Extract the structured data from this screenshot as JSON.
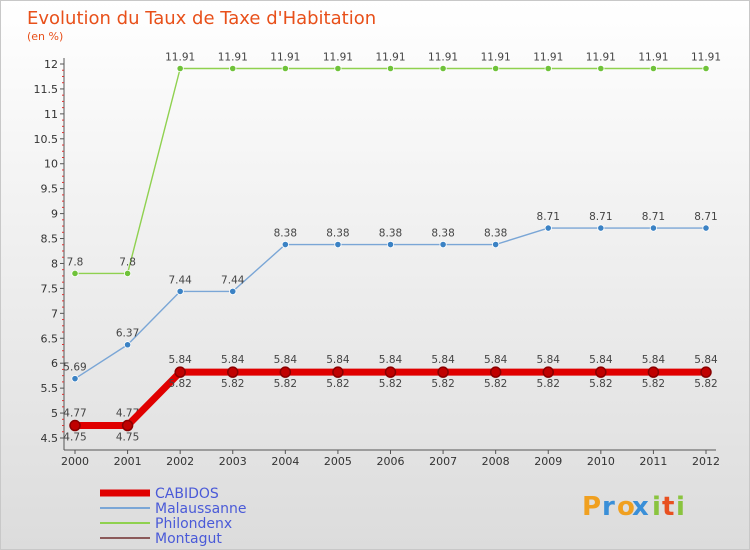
{
  "chart_data": {
    "type": "line",
    "title": "Evolution du Taux de Taxe d'Habitation",
    "ylabel": "(en %)",
    "xlabel": "",
    "ylim": [
      4.5,
      12
    ],
    "yticks": [
      "4.5",
      "5",
      "5.5",
      "6",
      "6.5",
      "7",
      "7.5",
      "8",
      "8.5",
      "9",
      "9.5",
      "10",
      "10.5",
      "11",
      "11.5",
      "12"
    ],
    "x": [
      "2000",
      "2001",
      "2002",
      "2003",
      "2004",
      "2005",
      "2006",
      "2007",
      "2008",
      "2009",
      "2010",
      "2011",
      "2012"
    ],
    "series": [
      {
        "name": "Philondenx",
        "color": "#8fd14f",
        "point_color": "#6fc23a",
        "values": [
          7.8,
          7.8,
          11.91,
          11.91,
          11.91,
          11.91,
          11.91,
          11.91,
          11.91,
          11.91,
          11.91,
          11.91,
          11.91
        ],
        "labels": [
          "7.8",
          "7.8",
          "11.91",
          "11.91",
          "11.91",
          "11.91",
          "11.91",
          "11.91",
          "11.91",
          "11.91",
          "11.91",
          "11.91",
          "11.91"
        ]
      },
      {
        "name": "Malaussanne",
        "color": "#7aa6d6",
        "point_color": "#3b82c4",
        "values": [
          5.69,
          6.37,
          7.44,
          7.44,
          8.38,
          8.38,
          8.38,
          8.38,
          8.38,
          8.71,
          8.71,
          8.71,
          8.71
        ],
        "labels": [
          "5.69",
          "6.37",
          "7.44",
          "7.44",
          "8.38",
          "8.38",
          "8.38",
          "8.38",
          "8.38",
          "8.71",
          "8.71",
          "8.71",
          "8.71"
        ]
      },
      {
        "name": "Montagut",
        "color": "#8b5a5a",
        "point_color": "#7a3a3a",
        "values": [
          4.77,
          4.77,
          5.84,
          5.84,
          5.84,
          5.84,
          5.84,
          5.84,
          5.84,
          5.84,
          5.84,
          5.84,
          5.84
        ],
        "labels": [
          "4.77",
          "4.77",
          "5.84",
          "5.84",
          "5.84",
          "5.84",
          "5.84",
          "5.84",
          "5.84",
          "5.84",
          "5.84",
          "5.84",
          "5.84"
        ]
      },
      {
        "name": "CABIDOS",
        "color": "#e00000",
        "point_color": "#c00000",
        "values": [
          4.75,
          4.75,
          5.82,
          5.82,
          5.82,
          5.82,
          5.82,
          5.82,
          5.82,
          5.82,
          5.82,
          5.82,
          5.82
        ],
        "labels": [
          "4.75",
          "4.75",
          "5.82",
          "5.82",
          "5.82",
          "5.82",
          "5.82",
          "5.82",
          "5.82",
          "5.82",
          "5.82",
          "5.82",
          "5.82"
        ]
      }
    ],
    "legend": [
      "CABIDOS",
      "Malaussanne",
      "Philondenx",
      "Montagut"
    ],
    "grid": false
  },
  "brand": {
    "letters": [
      "P",
      "r",
      "o",
      "x",
      "i",
      "t",
      "i"
    ]
  }
}
